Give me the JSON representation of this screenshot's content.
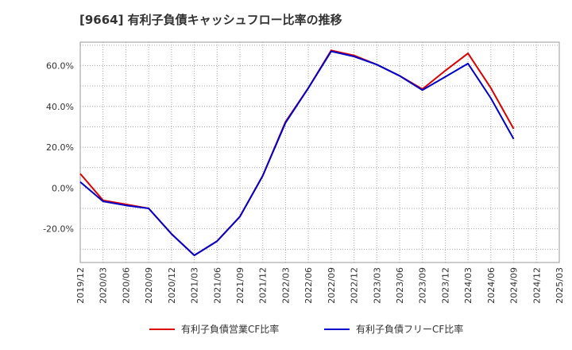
{
  "chart_data": {
    "type": "line",
    "title": "[9664]  有利子負債キャッシュフロー比率の推移",
    "xlabel": "",
    "ylabel": "",
    "ylim": [
      -36.5,
      71.5
    ],
    "yticks": [
      -20,
      0,
      20,
      40,
      60
    ],
    "ytick_labels": [
      "-20.0%",
      "0.0%",
      "20.0%",
      "40.0%",
      "60.0%"
    ],
    "x_range": [
      0,
      21
    ],
    "x_tick_labels": [
      "2019/12",
      "2020/03",
      "2020/06",
      "2020/09",
      "2020/12",
      "2021/03",
      "2021/06",
      "2021/09",
      "2021/12",
      "2022/03",
      "2022/06",
      "2022/09",
      "2022/12",
      "2023/03",
      "2023/06",
      "2023/09",
      "2023/12",
      "2024/03",
      "2024/06",
      "2024/09",
      "2024/12",
      "2025/03"
    ],
    "grid": true,
    "legend_position": "bottom",
    "series": [
      {
        "name": "有利子負債営業CF比率",
        "color": "#dd0000",
        "x": [
          0,
          1,
          2,
          3,
          4,
          5,
          6,
          7,
          8,
          9,
          10,
          11,
          12,
          13,
          14,
          15,
          16,
          17,
          18,
          19
        ],
        "values": [
          7,
          -6,
          -8,
          -10,
          -22.5,
          -33,
          -26,
          -14,
          6,
          32.5,
          49,
          67.5,
          65,
          60.5,
          55,
          48.5,
          57.5,
          66,
          49,
          29
        ]
      },
      {
        "name": "有利子負債フリーCF比率",
        "color": "#0000cc",
        "x": [
          0,
          1,
          2,
          3,
          4,
          5,
          6,
          7,
          8,
          9,
          10,
          11,
          12,
          13,
          14,
          15,
          16,
          17,
          18,
          19
        ],
        "values": [
          3,
          -6.5,
          -8.5,
          -10,
          -22.5,
          -33,
          -26,
          -14,
          6,
          32,
          49,
          67,
          64.5,
          60.5,
          55,
          48,
          54.5,
          61,
          44,
          24
        ]
      }
    ]
  }
}
